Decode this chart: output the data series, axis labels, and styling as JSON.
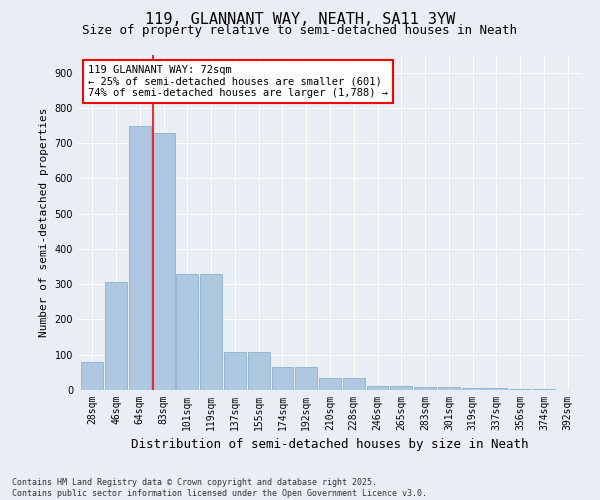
{
  "title": "119, GLANNANT WAY, NEATH, SA11 3YW",
  "subtitle": "Size of property relative to semi-detached houses in Neath",
  "xlabel": "Distribution of semi-detached houses by size in Neath",
  "ylabel": "Number of semi-detached properties",
  "categories": [
    "28sqm",
    "46sqm",
    "64sqm",
    "83sqm",
    "101sqm",
    "119sqm",
    "137sqm",
    "155sqm",
    "174sqm",
    "192sqm",
    "210sqm",
    "228sqm",
    "246sqm",
    "265sqm",
    "283sqm",
    "301sqm",
    "319sqm",
    "337sqm",
    "356sqm",
    "374sqm",
    "392sqm"
  ],
  "values": [
    80,
    305,
    750,
    730,
    330,
    330,
    108,
    108,
    65,
    65,
    35,
    35,
    12,
    12,
    8,
    8,
    5,
    5,
    3,
    3,
    0
  ],
  "bar_color": "#adc8e0",
  "bar_edge_color": "#7aaac8",
  "property_line_x": 2.55,
  "annotation_text": "119 GLANNANT WAY: 72sqm\n← 25% of semi-detached houses are smaller (601)\n74% of semi-detached houses are larger (1,788) →",
  "background_color": "#e8eef4",
  "grid_color": "#ffffff",
  "ylim": [
    0,
    950
  ],
  "yticks": [
    0,
    100,
    200,
    300,
    400,
    500,
    600,
    700,
    800,
    900
  ],
  "footer_text": "Contains HM Land Registry data © Crown copyright and database right 2025.\nContains public sector information licensed under the Open Government Licence v3.0.",
  "title_fontsize": 11,
  "subtitle_fontsize": 9,
  "annot_fontsize": 7.5,
  "ylabel_fontsize": 8,
  "xlabel_fontsize": 9,
  "tick_fontsize": 7
}
